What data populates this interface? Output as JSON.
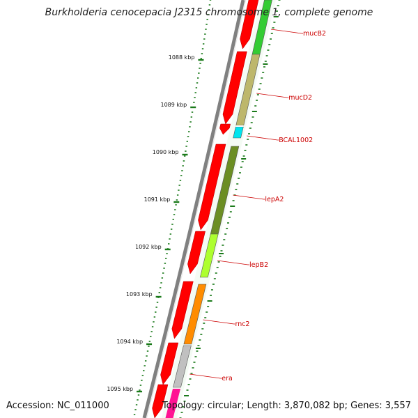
{
  "title": "Burkholderia cenocepacia J2315 chromosome 1, complete genome",
  "accession": "Accession: NC_011000",
  "topology": "Topology: circular; Length: 3,870,082 bp; Genes: 3,557",
  "ticks": [
    {
      "label": "1088 kbp",
      "kbp": 1088
    },
    {
      "label": "1089 kbp",
      "kbp": 1089
    },
    {
      "label": "1090 kbp",
      "kbp": 1090
    },
    {
      "label": "1091 kbp",
      "kbp": 1091
    },
    {
      "label": "1092 kbp",
      "kbp": 1092
    },
    {
      "label": "1093 kbp",
      "kbp": 1093
    },
    {
      "label": "1094 kbp",
      "kbp": 1094
    },
    {
      "label": "1095 kbp",
      "kbp": 1095
    }
  ],
  "genes": [
    {
      "name": "mucB2",
      "color": "#33cc33"
    },
    {
      "name": "mucD2",
      "color": "#bdb76b"
    },
    {
      "name": "BCAL1002",
      "color": "#00e5ee"
    },
    {
      "name": "lepA2",
      "color": "#6b8e23"
    },
    {
      "name": "lepB2",
      "color": "#adff2f"
    },
    {
      "name": "rnc2",
      "color": "#ff8c00"
    },
    {
      "name": "era",
      "color": "#c0c0c0"
    }
  ],
  "colors": {
    "cds": "#ff0000",
    "backbone": "#808080",
    "tick": "#1a7a1a",
    "label": "#cc0000",
    "magenta": "#ff1493"
  }
}
